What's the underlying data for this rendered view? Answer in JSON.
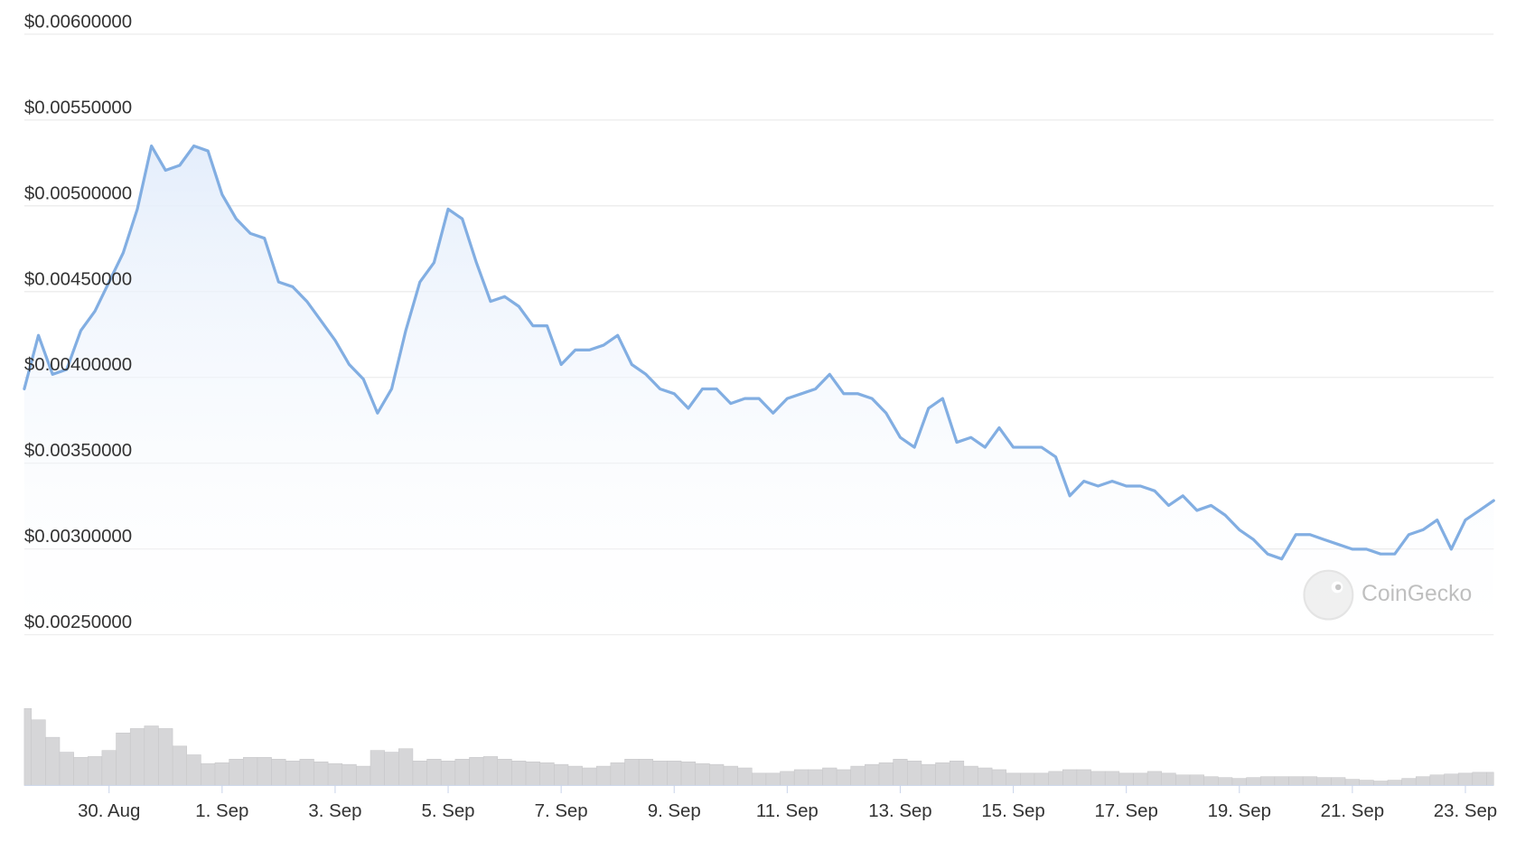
{
  "chart_data": {
    "type": "line",
    "watermark": "CoinGecko",
    "categories": [
      null,
      null,
      null,
      null,
      null,
      null,
      "30. Aug",
      null,
      null,
      null,
      null,
      null,
      null,
      null,
      "1. Sep",
      null,
      null,
      null,
      null,
      null,
      null,
      null,
      "3. Sep",
      null,
      null,
      null,
      null,
      null,
      null,
      null,
      "5. Sep",
      null,
      null,
      null,
      null,
      null,
      null,
      null,
      "7. Sep",
      null,
      null,
      null,
      null,
      null,
      null,
      null,
      "9. Sep",
      null,
      null,
      null,
      null,
      null,
      null,
      null,
      "11. Sep",
      null,
      null,
      null,
      null,
      null,
      null,
      null,
      "13. Sep",
      null,
      null,
      null,
      null,
      null,
      null,
      null,
      "15. Sep",
      null,
      null,
      null,
      null,
      null,
      null,
      null,
      "17. Sep",
      null,
      null,
      null,
      null,
      null,
      null,
      null,
      "19. Sep",
      null,
      null,
      null,
      null,
      null,
      null,
      null,
      "21. Sep",
      null,
      null,
      null,
      null,
      null,
      null,
      null,
      "23. Sep",
      null,
      null
    ],
    "series": [
      {
        "color": "#82aee2",
        "values": [
          0.003933,
          0.004245,
          0.004018,
          0.004046,
          0.004273,
          0.004386,
          0.004556,
          0.004726,
          0.004981,
          0.005349,
          0.005207,
          0.005236,
          0.005349,
          0.00532,
          0.005066,
          0.004924,
          0.004839,
          0.004811,
          0.004556,
          0.004528,
          0.004443,
          0.00433,
          0.004216,
          0.004075,
          0.00399,
          0.003792,
          0.003933,
          0.004273,
          0.004556,
          0.004669,
          0.004981,
          0.004924,
          0.004669,
          0.004443,
          0.004471,
          0.004414,
          0.004301,
          0.004301,
          0.004075,
          0.00416,
          0.00416,
          0.004188,
          0.004245,
          0.004075,
          0.004018,
          0.003933,
          0.003905,
          0.00382,
          0.003933,
          0.003933,
          0.003848,
          0.003877,
          0.003877,
          0.003792,
          0.003877,
          0.003905,
          0.003933,
          0.004018,
          0.003905,
          0.003905,
          0.003877,
          0.003792,
          0.00365,
          0.003593,
          0.00382,
          0.003877,
          0.003622,
          0.00365,
          0.003593,
          0.003707,
          0.003593,
          0.003593,
          0.003593,
          0.003537,
          0.00331,
          0.003395,
          0.003367,
          0.003395,
          0.003367,
          0.003367,
          0.003339,
          0.003254,
          0.00331,
          0.003225,
          0.003254,
          0.003197,
          0.003112,
          0.003055,
          0.002971,
          0.002942,
          0.003084,
          0.003084,
          0.003055,
          0.003027,
          0.002999,
          0.002999,
          0.002971,
          0.002971,
          0.003084,
          0.003112,
          0.003169,
          0.002999,
          0.003169,
          0.003225,
          0.003282
        ]
      }
    ],
    "volume": {
      "color": "#d6d6d8",
      "ylim": [
        0,
        100
      ],
      "values": [
        88,
        75,
        55,
        38,
        32,
        33,
        40,
        60,
        65,
        68,
        65,
        45,
        35,
        25,
        26,
        30,
        32,
        32,
        30,
        28,
        30,
        27,
        25,
        24,
        22,
        40,
        38,
        42,
        28,
        30,
        28,
        30,
        32,
        33,
        30,
        28,
        27,
        26,
        24,
        22,
        20,
        22,
        26,
        30,
        30,
        28,
        28,
        27,
        25,
        24,
        22,
        20,
        14,
        14,
        16,
        18,
        18,
        20,
        18,
        22,
        24,
        26,
        30,
        28,
        24,
        26,
        28,
        22,
        20,
        18,
        14,
        14,
        14,
        16,
        18,
        18,
        16,
        16,
        14,
        14,
        16,
        14,
        12,
        12,
        10,
        9,
        8,
        9,
        10,
        10,
        10,
        10,
        9,
        9,
        7,
        6,
        5,
        6,
        8,
        10,
        12,
        13,
        14,
        15,
        15
      ]
    },
    "ylim": [
      0.0025,
      0.006
    ],
    "yticks": [
      {
        "value": 0.0025,
        "label": "$0.00250000"
      },
      {
        "value": 0.003,
        "label": "$0.00300000"
      },
      {
        "value": 0.0035,
        "label": "$0.00350000"
      },
      {
        "value": 0.004,
        "label": "$0.00400000"
      },
      {
        "value": 0.0045,
        "label": "$0.00450000"
      },
      {
        "value": 0.005,
        "label": "$0.00500000"
      },
      {
        "value": 0.0055,
        "label": "$0.00550000"
      },
      {
        "value": 0.006,
        "label": "$0.00600000"
      }
    ],
    "grid": true
  }
}
